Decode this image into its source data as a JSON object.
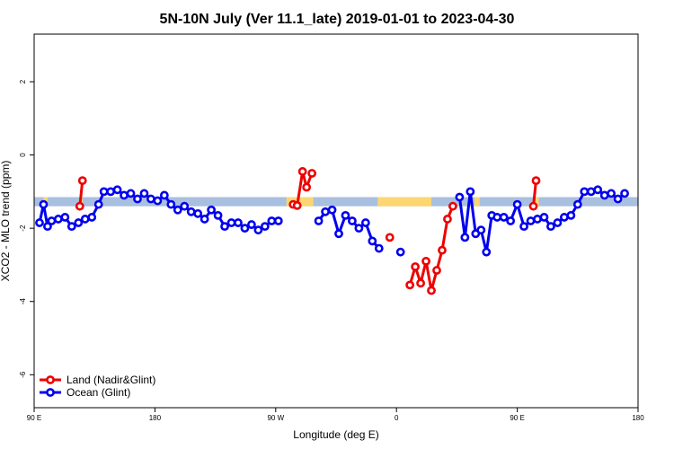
{
  "chart_data": {
    "type": "line",
    "title": "5N-10N July (Ver 11.1_late)   2019-01-01 to 2023-04-30",
    "xlabel": "Longitude (deg E)",
    "ylabel": "XCO2 - MLO trend (ppm)",
    "xlim": [
      90,
      540
    ],
    "ylim": [
      -6.9,
      3.3
    ],
    "x_ticks": [
      {
        "value": 90,
        "label": "90 E"
      },
      {
        "value": 180,
        "label": "180"
      },
      {
        "value": 270,
        "label": "90 W"
      },
      {
        "value": 360,
        "label": "0"
      },
      {
        "value": 450,
        "label": "90 E"
      },
      {
        "value": 540,
        "label": "180"
      }
    ],
    "y_ticks": [
      {
        "value": 2,
        "label": "2"
      },
      {
        "value": 0,
        "label": "0"
      },
      {
        "value": -2,
        "label": "-2"
      },
      {
        "value": -4,
        "label": "-4"
      },
      {
        "value": -6,
        "label": "-6"
      }
    ],
    "band": {
      "ymin": -1.4,
      "ymax": -1.15,
      "color": "#a9bfdf"
    },
    "land_mask": {
      "color": "#fcd672",
      "ranges": [
        [
          97,
          100
        ],
        [
          124,
          126
        ],
        [
          278,
          298
        ],
        [
          346,
          386
        ],
        [
          418,
          422
        ],
        [
          463,
          466
        ]
      ]
    },
    "series": [
      {
        "name": "Land (Nadir&Glint)",
        "color": "#ee0000",
        "segments": [
          [
            [
              124,
              -1.4
            ],
            [
              126,
              -0.7
            ]
          ],
          [
            [
              283,
              -1.35
            ],
            [
              286,
              -1.38
            ],
            [
              290,
              -0.45
            ],
            [
              293,
              -0.88
            ],
            [
              297,
              -0.5
            ]
          ],
          [
            [
              355,
              -2.25
            ]
          ],
          [
            [
              370,
              -3.55
            ],
            [
              374,
              -3.05
            ],
            [
              378,
              -3.5
            ],
            [
              382,
              -2.9
            ],
            [
              386,
              -3.7
            ],
            [
              390,
              -3.15
            ],
            [
              394,
              -2.6
            ],
            [
              398,
              -1.75
            ],
            [
              402,
              -1.4
            ]
          ],
          [
            [
              462,
              -1.4
            ],
            [
              464,
              -0.7
            ]
          ]
        ]
      },
      {
        "name": "Ocean (Glint)",
        "color": "#0000ee",
        "segments": [
          [
            [
              94,
              -1.85
            ],
            [
              97,
              -1.35
            ],
            [
              100,
              -1.95
            ],
            [
              103,
              -1.8
            ],
            [
              108,
              -1.75
            ],
            [
              113,
              -1.7
            ],
            [
              118,
              -1.95
            ],
            [
              123,
              -1.85
            ],
            [
              128,
              -1.75
            ],
            [
              133,
              -1.7
            ],
            [
              138,
              -1.35
            ],
            [
              142,
              -1.0
            ],
            [
              147,
              -1.0
            ],
            [
              152,
              -0.95
            ],
            [
              157,
              -1.1
            ],
            [
              162,
              -1.05
            ],
            [
              167,
              -1.2
            ],
            [
              172,
              -1.05
            ],
            [
              177,
              -1.2
            ],
            [
              182,
              -1.25
            ],
            [
              187,
              -1.1
            ],
            [
              192,
              -1.35
            ],
            [
              197,
              -1.5
            ],
            [
              202,
              -1.4
            ],
            [
              207,
              -1.55
            ],
            [
              212,
              -1.6
            ],
            [
              217,
              -1.75
            ],
            [
              222,
              -1.5
            ],
            [
              227,
              -1.65
            ],
            [
              232,
              -1.95
            ],
            [
              237,
              -1.85
            ],
            [
              242,
              -1.85
            ],
            [
              247,
              -2.0
            ],
            [
              252,
              -1.9
            ],
            [
              257,
              -2.05
            ],
            [
              262,
              -1.95
            ],
            [
              267,
              -1.8
            ],
            [
              272,
              -1.8
            ]
          ],
          [
            [
              302,
              -1.8
            ],
            [
              307,
              -1.55
            ],
            [
              312,
              -1.5
            ],
            [
              317,
              -2.15
            ],
            [
              322,
              -1.65
            ],
            [
              327,
              -1.8
            ],
            [
              332,
              -2.0
            ],
            [
              337,
              -1.85
            ],
            [
              342,
              -2.35
            ],
            [
              347,
              -2.55
            ]
          ],
          [
            [
              363,
              -2.65
            ]
          ],
          [
            [
              407,
              -1.15
            ],
            [
              411,
              -2.25
            ],
            [
              415,
              -1.0
            ],
            [
              419,
              -2.15
            ],
            [
              423,
              -2.05
            ],
            [
              427,
              -2.65
            ],
            [
              431,
              -1.65
            ],
            [
              435,
              -1.7
            ],
            [
              440,
              -1.7
            ],
            [
              445,
              -1.8
            ],
            [
              450,
              -1.35
            ],
            [
              455,
              -1.95
            ],
            [
              460,
              -1.8
            ],
            [
              465,
              -1.75
            ],
            [
              470,
              -1.7
            ],
            [
              475,
              -1.95
            ],
            [
              480,
              -1.85
            ],
            [
              485,
              -1.7
            ],
            [
              490,
              -1.65
            ],
            [
              495,
              -1.35
            ],
            [
              500,
              -1.0
            ],
            [
              505,
              -1.0
            ],
            [
              510,
              -0.95
            ],
            [
              515,
              -1.1
            ],
            [
              520,
              -1.05
            ],
            [
              525,
              -1.2
            ],
            [
              530,
              -1.05
            ]
          ]
        ]
      }
    ],
    "legend": {
      "position": "bottom-left",
      "entries": [
        "Land (Nadir&Glint)",
        "Ocean (Glint)"
      ]
    },
    "grid": false
  }
}
